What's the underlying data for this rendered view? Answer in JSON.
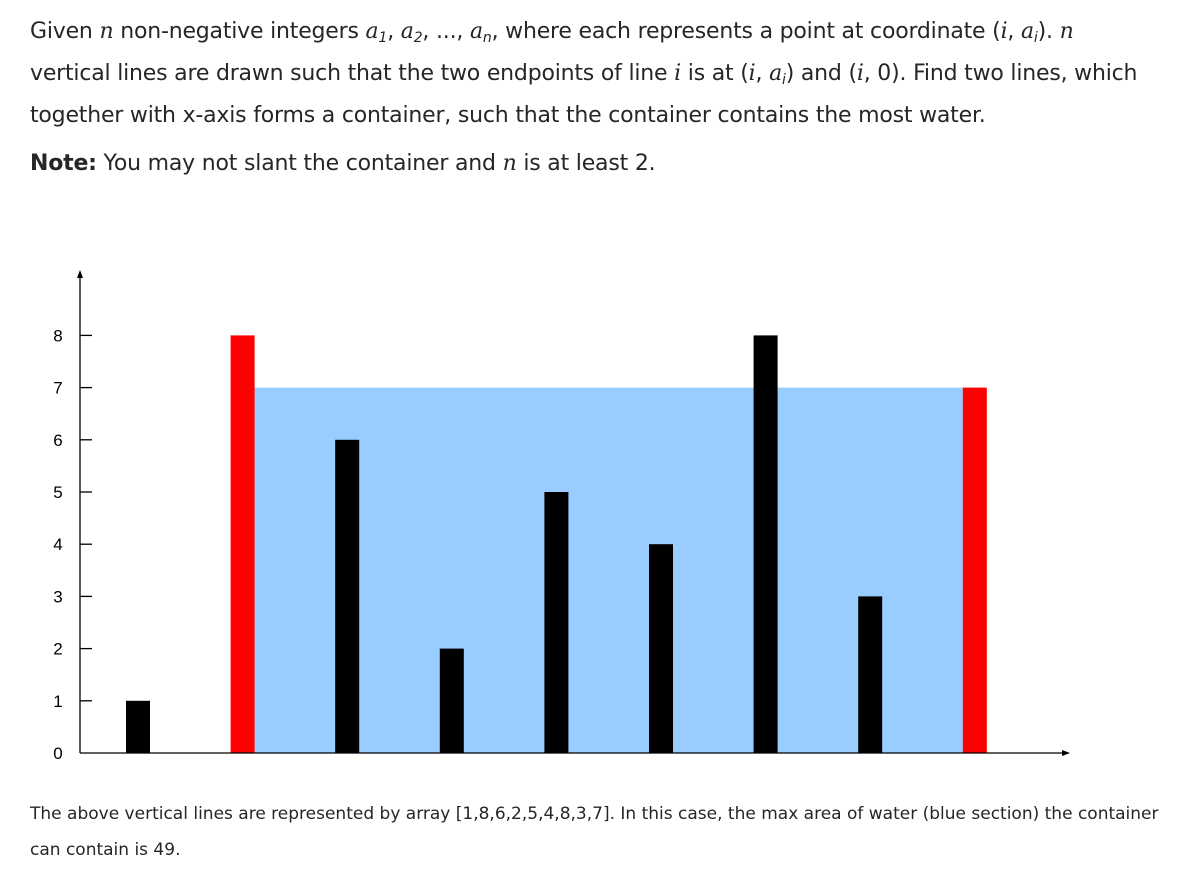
{
  "problem": {
    "line1_a": "Given ",
    "var_n": "n",
    "line1_b": " non-negative integers ",
    "a": "a",
    "sub1": "1",
    "sub2": "2",
    "subn": "n",
    "ellipsis": ", ...,",
    "line1_c": ", where each represents a point at coordinate (",
    "var_i": "i",
    "line1_d": ", ",
    "ai_sub": "i",
    "line1_e": "). ",
    "line1_f": " vertical lines are drawn such that the two endpoints of line ",
    "line1_g": " is at (",
    "line1_h": ") and (",
    "line1_i": ", 0). Find two lines, which together with x-axis forms a container, such that the container contains the most water."
  },
  "note": {
    "label": "Note:",
    "text_a": " You may not slant the container and ",
    "var_n": "n",
    "text_b": " is at least 2."
  },
  "chart_data": {
    "type": "bar",
    "values": [
      1,
      8,
      6,
      2,
      5,
      4,
      8,
      3,
      7
    ],
    "yticks": [
      "0",
      "1",
      "2",
      "3",
      "4",
      "5",
      "6",
      "7",
      "8"
    ],
    "ylim": [
      0,
      8
    ],
    "highlight_indices": [
      1,
      8
    ],
    "water_level": 7,
    "colors": {
      "bar": "#000000",
      "highlight": "#ff0000",
      "water": "#99ccff",
      "axis": "#000000"
    }
  },
  "caption": {
    "text": "The above vertical lines are represented by array [1,8,6,2,5,4,8,3,7]. In this case, the max area of water (blue section) the container can contain is 49."
  }
}
